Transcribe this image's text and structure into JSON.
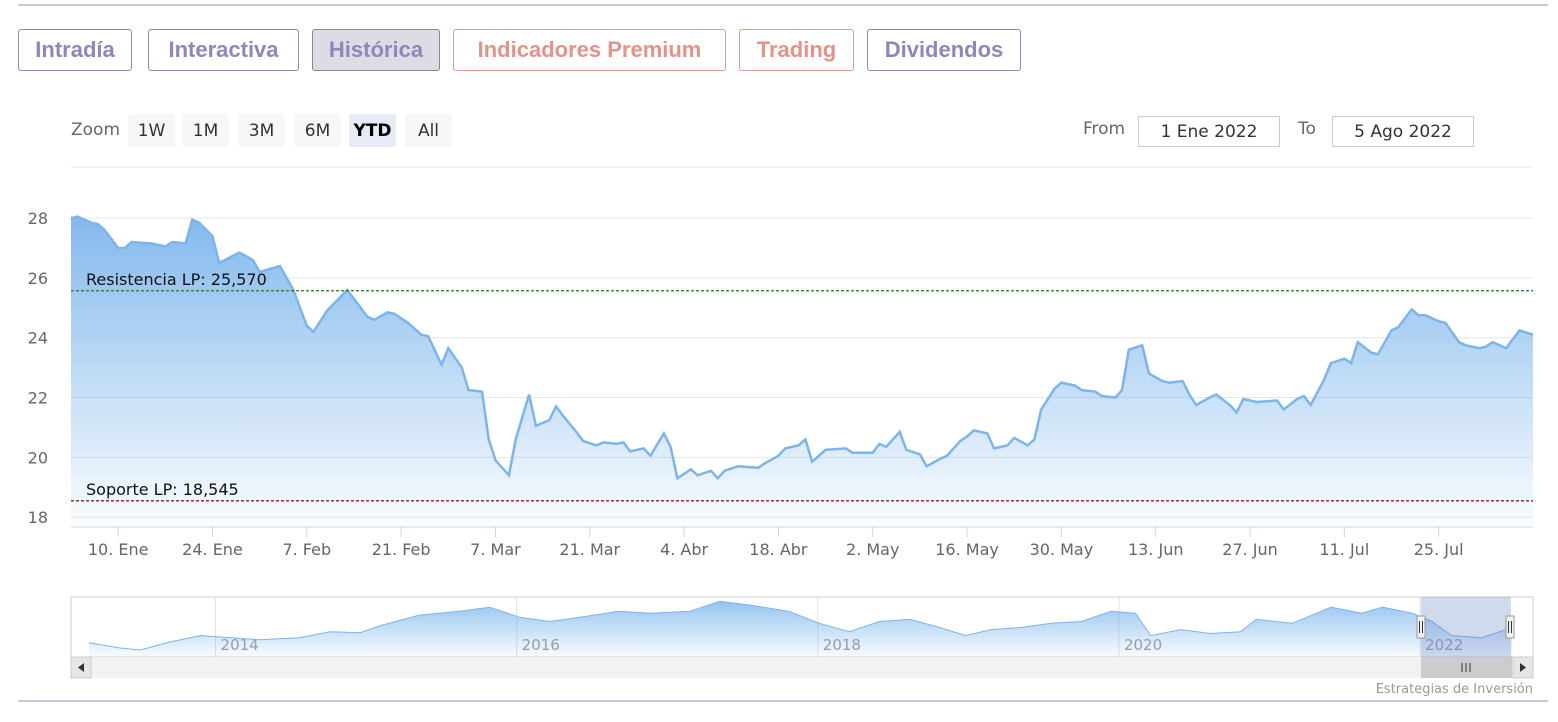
{
  "tabs": [
    "Intradía",
    "Interactiva",
    "Histórica",
    "Indicadores Premium",
    "Trading",
    "Dividendos"
  ],
  "range_selector": {
    "zoom_label": "Zoom",
    "buttons": [
      "1W",
      "1M",
      "3M",
      "6M",
      "YTD",
      "All"
    ],
    "selected": "YTD",
    "from_label": "From",
    "from": "1 Ene 2022",
    "to_label": "To",
    "to": "5 Ago 2022"
  },
  "credits": "Estrategias de Inversión",
  "chart_data": {
    "type": "area",
    "color": "#7cb5ec",
    "grid": true,
    "x": [
      3,
      4,
      6,
      7,
      8,
      10,
      11,
      12,
      15,
      17,
      18,
      20,
      21,
      22,
      24,
      25,
      28,
      30,
      31,
      34,
      36,
      38,
      39,
      41,
      44,
      47,
      48,
      50,
      51,
      53,
      55,
      56,
      58,
      59,
      61,
      62,
      64,
      65,
      66,
      68,
      69,
      71,
      72,
      74,
      75,
      76,
      78,
      79,
      81,
      82,
      84,
      85,
      86,
      88,
      89,
      91,
      92,
      93,
      95,
      96,
      98,
      99,
      100,
      102,
      105,
      106,
      108,
      109,
      111,
      112,
      113,
      115,
      118,
      119,
      122,
      123,
      124,
      126,
      127,
      129,
      130,
      132,
      133,
      135,
      136,
      137,
      139,
      140,
      142,
      143,
      145,
      146,
      147,
      149,
      150,
      152,
      153,
      155,
      156,
      158,
      159,
      160,
      162,
      163,
      165,
      166,
      168,
      169,
      170,
      172,
      173,
      175,
      176,
      177,
      179,
      182,
      183,
      185,
      186,
      187,
      189,
      190,
      192,
      193,
      194,
      196,
      197,
      199,
      200,
      202,
      203,
      204,
      206,
      207,
      209,
      210,
      212,
      213,
      214,
      216,
      217,
      218,
      220
    ],
    "values": [
      28.0,
      28.05,
      27.85,
      27.8,
      27.6,
      27.0,
      27.0,
      27.2,
      27.15,
      27.05,
      27.2,
      27.15,
      27.95,
      27.85,
      27.4,
      26.5,
      26.85,
      26.6,
      26.2,
      26.4,
      25.6,
      24.4,
      24.2,
      24.9,
      25.6,
      24.7,
      24.6,
      24.85,
      24.8,
      24.5,
      24.1,
      24.05,
      23.1,
      23.65,
      23.0,
      22.25,
      22.2,
      20.6,
      19.9,
      19.4,
      20.6,
      22.1,
      21.05,
      21.25,
      21.7,
      21.4,
      20.85,
      20.55,
      20.4,
      20.5,
      20.45,
      20.5,
      20.2,
      20.3,
      20.05,
      20.8,
      20.35,
      19.3,
      19.6,
      19.4,
      19.55,
      19.3,
      19.55,
      19.7,
      19.65,
      19.8,
      20.05,
      20.3,
      20.4,
      20.6,
      19.85,
      20.25,
      20.3,
      20.15,
      20.15,
      20.45,
      20.35,
      20.85,
      20.25,
      20.1,
      19.7,
      19.95,
      20.05,
      20.55,
      20.7,
      20.9,
      20.8,
      20.3,
      20.4,
      20.65,
      20.4,
      20.6,
      21.6,
      22.3,
      22.5,
      22.4,
      22.25,
      22.2,
      22.05,
      22.0,
      22.25,
      23.6,
      23.75,
      22.8,
      22.55,
      22.5,
      22.55,
      22.1,
      21.75,
      22.0,
      22.1,
      21.75,
      21.5,
      21.95,
      21.85,
      21.9,
      21.6,
      21.95,
      22.05,
      21.75,
      22.6,
      23.15,
      23.3,
      23.15,
      23.85,
      23.5,
      23.45,
      24.25,
      24.35,
      24.95,
      24.75,
      24.75,
      24.55,
      24.5,
      23.85,
      23.75,
      23.65,
      23.7,
      23.85,
      23.65,
      23.95,
      24.25,
      24.1
    ],
    "xlim": [
      3,
      220
    ],
    "xticks": [
      {
        "value": 10,
        "label": "10. Ene"
      },
      {
        "value": 24,
        "label": "24. Ene"
      },
      {
        "value": 38,
        "label": "7. Feb"
      },
      {
        "value": 52,
        "label": "21. Feb"
      },
      {
        "value": 66,
        "label": "7. Mar"
      },
      {
        "value": 80,
        "label": "21. Mar"
      },
      {
        "value": 94,
        "label": "4. Abr"
      },
      {
        "value": 108,
        "label": "18. Abr"
      },
      {
        "value": 122,
        "label": "2. May"
      },
      {
        "value": 136,
        "label": "16. May"
      },
      {
        "value": 150,
        "label": "30. May"
      },
      {
        "value": 164,
        "label": "13. Jun"
      },
      {
        "value": 178,
        "label": "27. Jun"
      },
      {
        "value": 192,
        "label": "11. Jul"
      },
      {
        "value": 206,
        "label": "25. Jul"
      }
    ],
    "ylim": [
      17.67,
      29.71
    ],
    "yticks": [
      18,
      20,
      22,
      24,
      26,
      28
    ],
    "plot_lines": [
      {
        "value": 25.57,
        "label": "Resistencia LP: 25,570",
        "color": "#1e7b1e"
      },
      {
        "value": 18.545,
        "label": "Soporte LP: 18,545",
        "color": "#8b1c1c"
      }
    ],
    "navigator": {
      "color": "#7cb5ec",
      "x": [
        2013.16,
        2013.36,
        2013.5,
        2013.7,
        2013.9,
        2014.1,
        2014.3,
        2014.56,
        2014.76,
        2014.96,
        2015.1,
        2015.35,
        2015.62,
        2015.82,
        2016.02,
        2016.22,
        2016.42,
        2016.68,
        2016.88,
        2017.15,
        2017.35,
        2017.55,
        2017.81,
        2018.01,
        2018.21,
        2018.41,
        2018.61,
        2018.81,
        2018.98,
        2019.15,
        2019.35,
        2019.55,
        2019.75,
        2019.95,
        2020.11,
        2020.21,
        2020.41,
        2020.61,
        2020.81,
        2020.91,
        2021.15,
        2021.41,
        2021.61,
        2021.75,
        2021.95,
        2022.08,
        2022.21,
        2022.41,
        2022.61
      ],
      "values": [
        18.2,
        16.2,
        15.4,
        18.5,
        20.9,
        20.1,
        19.3,
        20.1,
        22.4,
        22.0,
        24.8,
        28.7,
        30.2,
        31.8,
        27.9,
        26.3,
        27.9,
        30.2,
        29.5,
        30.2,
        34.1,
        32.6,
        30.2,
        25.6,
        22.4,
        26.3,
        27.1,
        24.0,
        20.9,
        23.2,
        24.0,
        25.6,
        26.3,
        30.2,
        29.5,
        20.9,
        23.2,
        21.7,
        22.4,
        27.1,
        25.6,
        31.8,
        29.5,
        31.8,
        29.5,
        26.3,
        20.9,
        20.1,
        24.0
      ],
      "xlim": [
        2013.04,
        2022.75
      ],
      "ylim": [
        12.7,
        35.7
      ],
      "xticks": [
        2014,
        2016,
        2018,
        2020,
        2022
      ]
    }
  }
}
